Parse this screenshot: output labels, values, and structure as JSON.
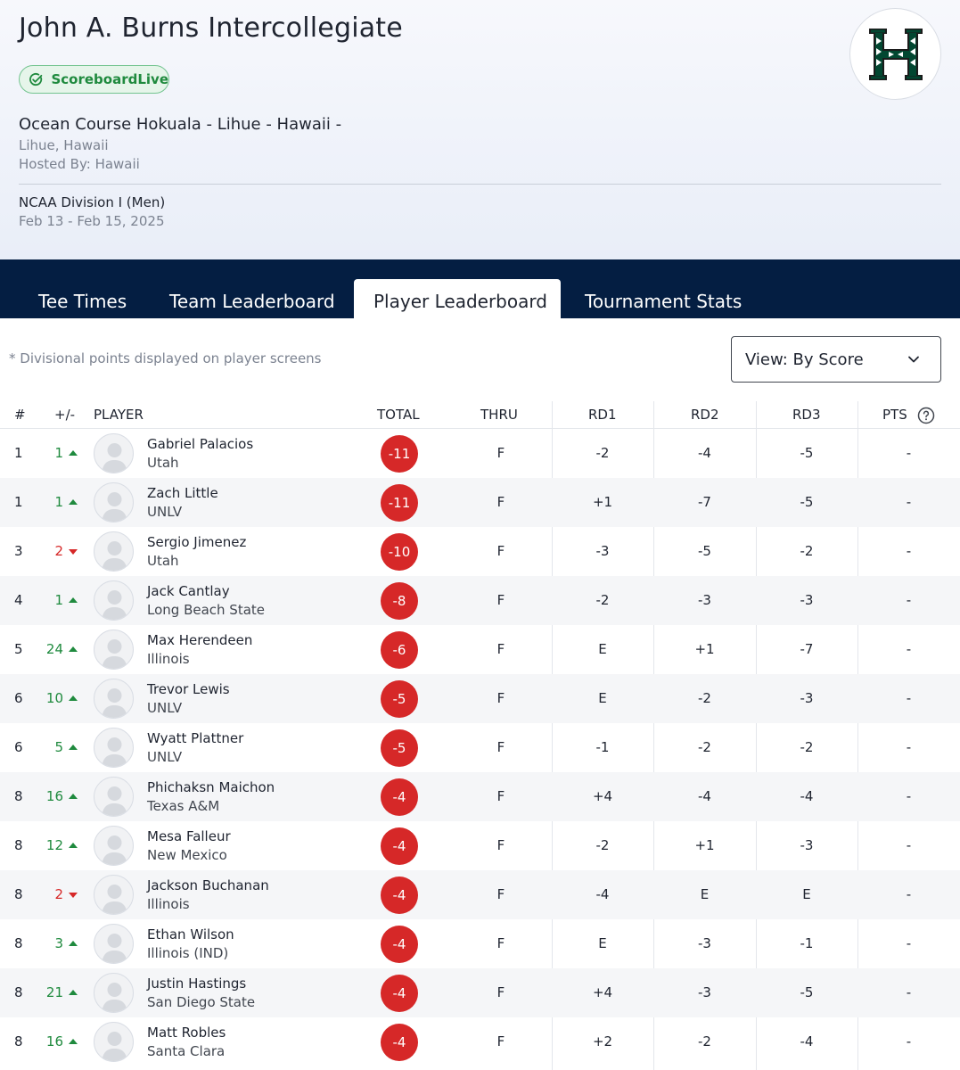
{
  "tournament": {
    "title": "John A. Burns Intercollegiate",
    "badge": "ScoreboardLive",
    "course": "Ocean Course Hokuala - Lihue - Hawaii -",
    "location": "Lihue, Hawaii",
    "host": "Hosted By: Hawaii",
    "division": "NCAA Division I (Men)",
    "dates": "Feb 13 - Feb 15, 2025",
    "logo_icon": "hawaii-h-logo",
    "logo_color": "#024731"
  },
  "tabs": [
    {
      "label": "Tee Times"
    },
    {
      "label": "Team Leaderboard"
    },
    {
      "label": "Player Leaderboard"
    },
    {
      "label": "Tournament Stats"
    }
  ],
  "controls": {
    "note": "* Divisional points displayed on player screens",
    "view_select": "View: By Score"
  },
  "columns": {
    "rank": "#",
    "move": "+/-",
    "player": "PLAYER",
    "total": "TOTAL",
    "thru": "THRU",
    "rd1": "RD1",
    "rd2": "RD2",
    "rd3": "RD3",
    "pts": "PTS"
  },
  "colors": {
    "navy": "#041e42",
    "green": "#1f8a3e",
    "red": "#d62828"
  },
  "rows": [
    {
      "rank": "1",
      "move": "1",
      "dir": "up",
      "name": "Gabriel Palacios",
      "team": "Utah",
      "total": "-11",
      "thru": "F",
      "rd1": "-2",
      "rd2": "-4",
      "rd3": "-5",
      "pts": "-"
    },
    {
      "rank": "1",
      "move": "1",
      "dir": "up",
      "name": "Zach Little",
      "team": "UNLV",
      "total": "-11",
      "thru": "F",
      "rd1": "+1",
      "rd2": "-7",
      "rd3": "-5",
      "pts": "-"
    },
    {
      "rank": "3",
      "move": "2",
      "dir": "down",
      "name": "Sergio Jimenez",
      "team": "Utah",
      "total": "-10",
      "thru": "F",
      "rd1": "-3",
      "rd2": "-5",
      "rd3": "-2",
      "pts": "-"
    },
    {
      "rank": "4",
      "move": "1",
      "dir": "up",
      "name": "Jack Cantlay",
      "team": "Long Beach State",
      "total": "-8",
      "thru": "F",
      "rd1": "-2",
      "rd2": "-3",
      "rd3": "-3",
      "pts": "-"
    },
    {
      "rank": "5",
      "move": "24",
      "dir": "up",
      "name": "Max Herendeen",
      "team": "Illinois",
      "total": "-6",
      "thru": "F",
      "rd1": "E",
      "rd2": "+1",
      "rd3": "-7",
      "pts": "-"
    },
    {
      "rank": "6",
      "move": "10",
      "dir": "up",
      "name": "Trevor Lewis",
      "team": "UNLV",
      "total": "-5",
      "thru": "F",
      "rd1": "E",
      "rd2": "-2",
      "rd3": "-3",
      "pts": "-"
    },
    {
      "rank": "6",
      "move": "5",
      "dir": "up",
      "name": "Wyatt Plattner",
      "team": "UNLV",
      "total": "-5",
      "thru": "F",
      "rd1": "-1",
      "rd2": "-2",
      "rd3": "-2",
      "pts": "-"
    },
    {
      "rank": "8",
      "move": "16",
      "dir": "up",
      "name": "Phichaksn Maichon",
      "team": "Texas A&M",
      "total": "-4",
      "thru": "F",
      "rd1": "+4",
      "rd2": "-4",
      "rd3": "-4",
      "pts": "-"
    },
    {
      "rank": "8",
      "move": "12",
      "dir": "up",
      "name": "Mesa Falleur",
      "team": "New Mexico",
      "total": "-4",
      "thru": "F",
      "rd1": "-2",
      "rd2": "+1",
      "rd3": "-3",
      "pts": "-"
    },
    {
      "rank": "8",
      "move": "2",
      "dir": "down",
      "name": "Jackson Buchanan",
      "team": "Illinois",
      "total": "-4",
      "thru": "F",
      "rd1": "-4",
      "rd2": "E",
      "rd3": "E",
      "pts": "-"
    },
    {
      "rank": "8",
      "move": "3",
      "dir": "up",
      "name": "Ethan Wilson",
      "team": "Illinois (IND)",
      "total": "-4",
      "thru": "F",
      "rd1": "E",
      "rd2": "-3",
      "rd3": "-1",
      "pts": "-"
    },
    {
      "rank": "8",
      "move": "21",
      "dir": "up",
      "name": "Justin Hastings",
      "team": "San Diego State",
      "total": "-4",
      "thru": "F",
      "rd1": "+4",
      "rd2": "-3",
      "rd3": "-5",
      "pts": "-"
    },
    {
      "rank": "8",
      "move": "16",
      "dir": "up",
      "name": "Matt Robles",
      "team": "Santa Clara",
      "total": "-4",
      "thru": "F",
      "rd1": "+2",
      "rd2": "-2",
      "rd3": "-4",
      "pts": "-"
    }
  ]
}
